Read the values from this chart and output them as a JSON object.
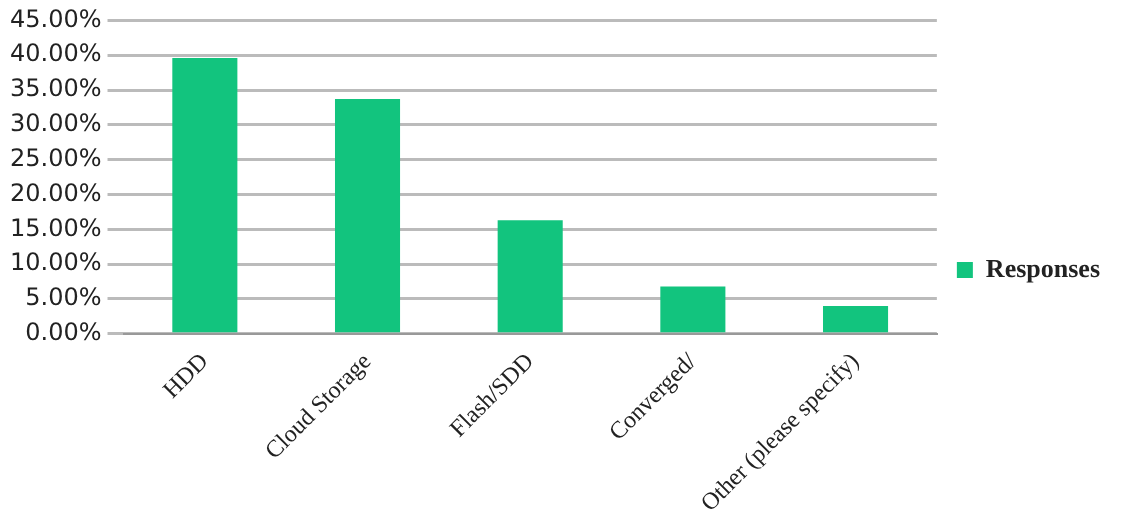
{
  "chart_data": {
    "type": "bar",
    "categories": [
      "HDD",
      "Cloud Storage",
      "Flash/SDD",
      "Converged/",
      "Other (please specify)"
    ],
    "series": [
      {
        "name": "Responses",
        "color": "#12c47e",
        "values": [
          39.6,
          33.7,
          16.3,
          6.8,
          4.0
        ]
      }
    ],
    "ylim": [
      0,
      45
    ],
    "yticks": [
      {
        "value": 0,
        "label": "0.00%"
      },
      {
        "value": 5,
        "label": "5.00%"
      },
      {
        "value": 10,
        "label": "10.00%"
      },
      {
        "value": 15,
        "label": "15.00%"
      },
      {
        "value": 20,
        "label": "20.00%"
      },
      {
        "value": 25,
        "label": "25.00%"
      },
      {
        "value": 30,
        "label": "30.00%"
      },
      {
        "value": 35,
        "label": "35.00%"
      },
      {
        "value": 40,
        "label": "40.00%"
      },
      {
        "value": 45,
        "label": "45.00%"
      }
    ],
    "grid": "y",
    "legend": "right"
  }
}
